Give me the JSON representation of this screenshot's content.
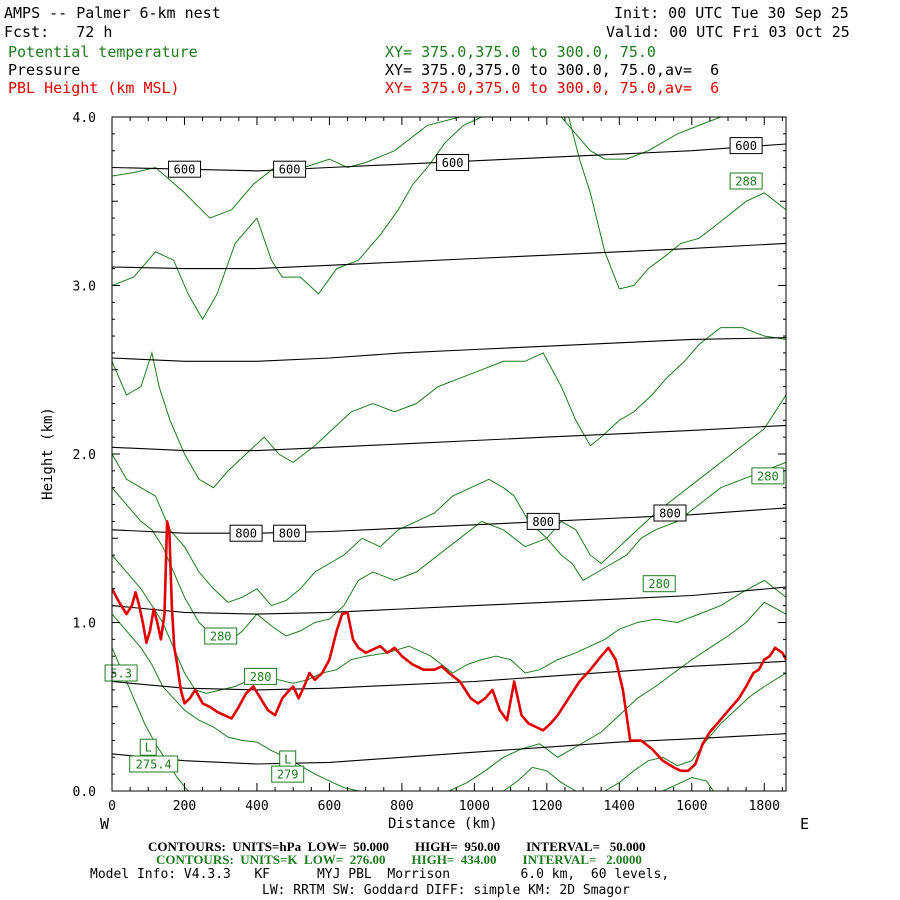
{
  "header": {
    "title": "AMPS -- Palmer 6-km nest",
    "fcst": "Fcst:   72 h",
    "init": "Init: 00 UTC Tue 30 Sep 25",
    "valid": "Valid: 00 UTC Fri 03 Oct 25",
    "field1_name": "Potential temperature",
    "field1_xy": "XY= 375.0,375.0 to 300.0, 75.0",
    "field2_name": "Pressure",
    "field2_xy": "XY= 375.0,375.0 to 300.0, 75.0,av=  6",
    "field3_name": "PBL Height (km MSL)",
    "field3_xy": "XY= 375.0,375.0 to 300.0, 75.0,av=  6"
  },
  "footer": {
    "left_end": "W",
    "right_end": "E",
    "contours_p": "CONTOURS:  UNITS=hPa  LOW=  50.000        HIGH=  950.00        INTERVAL=   50.000",
    "contours_t": "CONTOURS:  UNITS=K  LOW=  276.00        HIGH=  434.00        INTERVAL=   2.0000",
    "model1": "Model Info: V4.3.3   KF      MYJ PBL  Morrison         6.0 km,  60 levels,",
    "model2": "LW: RRTM SW: Goddard DIFF: simple KM: 2D Smagor"
  },
  "colors": {
    "theta": "#1f7a1f",
    "pressure": "#000000",
    "pbl": "#e00000"
  },
  "chart_data": {
    "type": "line",
    "xlabel": "Distance (km)",
    "ylabel": "Height (km)",
    "xlim": [
      0,
      1860
    ],
    "ylim": [
      0,
      4.0
    ],
    "xticks": [
      0,
      200,
      400,
      600,
      800,
      1000,
      1200,
      1400,
      1600,
      1800
    ],
    "yticks": [
      0.0,
      1.0,
      2.0,
      3.0,
      4.0
    ],
    "ytick_labels": [
      "0.0",
      "1.0",
      "2.0",
      "3.0",
      "4.0"
    ],
    "pressure_contours": [
      {
        "x": [
          0,
          200,
          400,
          600,
          800,
          1000,
          1200,
          1400,
          1600,
          1860
        ],
        "y": [
          3.7,
          3.69,
          3.68,
          3.7,
          3.72,
          3.74,
          3.76,
          3.78,
          3.8,
          3.84
        ]
      },
      {
        "x": [
          0,
          200,
          400,
          600,
          800,
          1000,
          1200,
          1400,
          1600,
          1860
        ],
        "y": [
          3.11,
          3.1,
          3.1,
          3.12,
          3.14,
          3.16,
          3.18,
          3.2,
          3.22,
          3.25
        ]
      },
      {
        "x": [
          0,
          200,
          400,
          600,
          800,
          1000,
          1200,
          1400,
          1600,
          1860
        ],
        "y": [
          2.57,
          2.55,
          2.55,
          2.57,
          2.6,
          2.62,
          2.64,
          2.66,
          2.68,
          2.69
        ]
      },
      {
        "x": [
          0,
          200,
          400,
          600,
          800,
          1000,
          1200,
          1400,
          1600,
          1860
        ],
        "y": [
          2.04,
          2.02,
          2.02,
          2.04,
          2.06,
          2.08,
          2.1,
          2.12,
          2.14,
          2.17
        ]
      },
      {
        "x": [
          0,
          200,
          400,
          600,
          800,
          1000,
          1200,
          1400,
          1600,
          1860
        ],
        "y": [
          1.55,
          1.53,
          1.53,
          1.54,
          1.56,
          1.58,
          1.6,
          1.62,
          1.64,
          1.68
        ]
      },
      {
        "x": [
          0,
          200,
          400,
          600,
          800,
          1000,
          1200,
          1400,
          1600,
          1860
        ],
        "y": [
          1.1,
          1.06,
          1.05,
          1.06,
          1.08,
          1.1,
          1.12,
          1.14,
          1.16,
          1.21
        ]
      },
      {
        "x": [
          0,
          200,
          400,
          600,
          800,
          1000,
          1200,
          1400,
          1600,
          1860
        ],
        "y": [
          0.65,
          0.61,
          0.6,
          0.61,
          0.63,
          0.65,
          0.68,
          0.71,
          0.74,
          0.77
        ]
      },
      {
        "x": [
          0,
          200,
          400,
          600,
          800,
          1000,
          1200,
          1400,
          1600,
          1860
        ],
        "y": [
          0.22,
          0.18,
          0.16,
          0.17,
          0.2,
          0.23,
          0.26,
          0.29,
          0.31,
          0.34
        ]
      }
    ],
    "pressure_labels": [
      {
        "text": "600",
        "x": 200,
        "y": 3.69
      },
      {
        "text": "600",
        "x": 490,
        "y": 3.69
      },
      {
        "text": "600",
        "x": 940,
        "y": 3.73
      },
      {
        "text": "600",
        "x": 1750,
        "y": 3.83
      },
      {
        "text": "800",
        "x": 370,
        "y": 1.53
      },
      {
        "text": "800",
        "x": 490,
        "y": 1.53
      },
      {
        "text": "800",
        "x": 1190,
        "y": 1.6
      },
      {
        "text": "800",
        "x": 1540,
        "y": 1.65
      }
    ],
    "theta_contours": [
      {
        "x": [
          0,
          60,
          120,
          200,
          270,
          330,
          390,
          460,
          530,
          600,
          650,
          700,
          780,
          870,
          960,
          1050,
          1120,
          1180,
          1250,
          1300,
          1360,
          1420,
          1500,
          1560,
          1620,
          1680,
          1750,
          1800,
          1860
        ],
        "y": [
          3.65,
          3.67,
          3.7,
          3.55,
          3.4,
          3.45,
          3.6,
          3.72,
          3.7,
          3.75,
          3.7,
          3.73,
          3.8,
          3.95,
          4.0,
          4.0,
          4.0,
          4.0,
          4.0,
          4.0,
          4.0,
          4.0,
          4.0,
          4.0,
          4.0,
          4.0,
          4.0,
          4.0,
          4.0
        ]
      },
      {
        "x": [
          0,
          60,
          120,
          170,
          210,
          250,
          290,
          340,
          400,
          440,
          470,
          520,
          570,
          620,
          680,
          740,
          790,
          830,
          870,
          920,
          970,
          1020,
          1060,
          1100,
          1150
        ],
        "y": [
          3.0,
          3.05,
          3.2,
          3.15,
          2.95,
          2.8,
          2.95,
          3.25,
          3.4,
          3.15,
          3.05,
          3.05,
          2.95,
          3.1,
          3.15,
          3.3,
          3.45,
          3.6,
          3.7,
          3.85,
          3.95,
          4.0,
          4.0,
          4.0,
          4.0
        ]
      },
      {
        "x": [
          1260,
          1290,
          1320,
          1360,
          1400,
          1440,
          1480,
          1530,
          1570,
          1620,
          1680,
          1750,
          1800,
          1860
        ],
        "y": [
          4.0,
          3.75,
          3.55,
          3.2,
          2.98,
          3.0,
          3.1,
          3.18,
          3.25,
          3.28,
          3.38,
          3.5,
          3.55,
          3.45
        ]
      },
      {
        "x": [
          1240,
          1280,
          1320,
          1360,
          1420,
          1480,
          1560,
          1620,
          1680,
          1740,
          1800,
          1860
        ],
        "y": [
          4.0,
          3.9,
          3.8,
          3.75,
          3.75,
          3.8,
          3.9,
          3.95,
          4.0,
          4.0,
          4.0,
          4.0
        ]
      },
      {
        "x": [
          0,
          40,
          80,
          110,
          130,
          160,
          200,
          240,
          280,
          320,
          370,
          420,
          460,
          500,
          560,
          610,
          660,
          720,
          780,
          840,
          900,
          960,
          1020,
          1080,
          1140,
          1190,
          1240,
          1280,
          1320,
          1350,
          1400,
          1440,
          1490,
          1530,
          1580,
          1620,
          1680,
          1740,
          1800,
          1860
        ],
        "y": [
          2.55,
          2.35,
          2.4,
          2.6,
          2.4,
          2.2,
          2.0,
          1.85,
          1.8,
          1.9,
          2.0,
          2.1,
          2.0,
          1.95,
          2.05,
          2.15,
          2.25,
          2.3,
          2.25,
          2.3,
          2.4,
          2.45,
          2.5,
          2.55,
          2.55,
          2.6,
          2.4,
          2.2,
          2.05,
          2.1,
          2.2,
          2.25,
          2.35,
          2.45,
          2.55,
          2.65,
          2.75,
          2.75,
          2.7,
          2.68
        ]
      },
      {
        "x": [
          0,
          40,
          80,
          120,
          160,
          200,
          240,
          280,
          320,
          360,
          400,
          440,
          480,
          520,
          560,
          600,
          640,
          690,
          740,
          790,
          840,
          890,
          940,
          990,
          1040,
          1080,
          1110,
          1150,
          1200,
          1240,
          1280,
          1320,
          1350,
          1400,
          1450,
          1500,
          1560,
          1620,
          1680,
          1740,
          1800,
          1860
        ],
        "y": [
          2.0,
          1.85,
          1.8,
          1.75,
          1.55,
          1.45,
          1.3,
          1.2,
          1.12,
          1.15,
          1.2,
          1.1,
          1.13,
          1.2,
          1.3,
          1.35,
          1.4,
          1.5,
          1.45,
          1.55,
          1.6,
          1.65,
          1.75,
          1.8,
          1.85,
          1.8,
          1.75,
          1.6,
          1.5,
          1.6,
          1.55,
          1.4,
          1.35,
          1.45,
          1.55,
          1.65,
          1.75,
          1.85,
          1.95,
          2.05,
          2.15,
          2.35
        ]
      },
      {
        "x": [
          0,
          40,
          80,
          110,
          140,
          170,
          200,
          240,
          280,
          320,
          360,
          400,
          440,
          480,
          520,
          560,
          600,
          640,
          680,
          720,
          780,
          840,
          900,
          960,
          1020,
          1080,
          1140,
          1200,
          1240,
          1270,
          1300,
          1340,
          1380,
          1420,
          1460,
          1500,
          1560,
          1620,
          1680,
          1740,
          1800,
          1860
        ],
        "y": [
          1.8,
          1.7,
          1.6,
          1.55,
          1.45,
          1.3,
          1.15,
          1.0,
          0.92,
          0.88,
          0.95,
          1.05,
          0.98,
          0.92,
          0.95,
          1.0,
          1.02,
          1.1,
          1.25,
          1.3,
          1.25,
          1.3,
          1.4,
          1.5,
          1.6,
          1.55,
          1.45,
          1.5,
          1.4,
          1.35,
          1.25,
          1.3,
          1.35,
          1.4,
          1.5,
          1.55,
          1.6,
          1.7,
          1.8,
          1.85,
          1.9,
          1.95
        ]
      },
      {
        "x": [
          0,
          40,
          80,
          110,
          140,
          170,
          200,
          230,
          260,
          300,
          340,
          380,
          420,
          460,
          500,
          540,
          580,
          620,
          660,
          700,
          760,
          820,
          880,
          940,
          980,
          1020,
          1060,
          1100,
          1140,
          1180,
          1230,
          1280,
          1320,
          1360,
          1400,
          1450,
          1500,
          1560,
          1620,
          1680,
          1740,
          1800,
          1860
        ],
        "y": [
          1.4,
          1.3,
          1.2,
          1.1,
          1.0,
          0.85,
          0.7,
          0.6,
          0.58,
          0.6,
          0.62,
          0.66,
          0.68,
          0.66,
          0.64,
          0.66,
          0.7,
          0.72,
          0.78,
          0.8,
          0.82,
          0.86,
          0.8,
          0.7,
          0.75,
          0.78,
          0.8,
          0.78,
          0.7,
          0.72,
          0.78,
          0.82,
          0.86,
          0.9,
          0.96,
          1.0,
          1.02,
          1.0,
          1.05,
          1.1,
          1.18,
          1.25,
          1.15
        ]
      },
      {
        "x": [
          0,
          40,
          80,
          110,
          140,
          170,
          200,
          240,
          280,
          320,
          360,
          400,
          440,
          480,
          520,
          560,
          600,
          640,
          680
        ],
        "y": [
          1.05,
          0.95,
          0.85,
          0.75,
          0.62,
          0.55,
          0.48,
          0.42,
          0.38,
          0.32,
          0.3,
          0.29,
          0.24,
          0.2,
          0.15,
          0.1,
          0.06,
          0.02,
          0.0
        ]
      },
      {
        "x": [
          0,
          30,
          60,
          90,
          120,
          150,
          180,
          210
        ],
        "y": [
          0.85,
          0.7,
          0.55,
          0.4,
          0.28,
          0.18,
          0.08,
          0.0
        ]
      },
      {
        "x": [
          930,
          980,
          1030,
          1080,
          1130,
          1180,
          1230,
          1270,
          1310,
          1350,
          1400,
          1450,
          1500,
          1550,
          1600,
          1650,
          1700,
          1750,
          1800,
          1860
        ],
        "y": [
          0.0,
          0.05,
          0.12,
          0.2,
          0.25,
          0.28,
          0.2,
          0.25,
          0.3,
          0.35,
          0.45,
          0.55,
          0.62,
          0.7,
          0.78,
          0.85,
          0.92,
          1.0,
          1.12,
          1.05
        ]
      },
      {
        "x": [
          1080,
          1120,
          1160,
          1200,
          1240,
          1280
        ],
        "y": [
          0.0,
          0.06,
          0.14,
          0.12,
          0.05,
          0.0
        ]
      },
      {
        "x": [
          1360,
          1400,
          1440,
          1480,
          1520,
          1560,
          1600,
          1640,
          1680,
          1720,
          1760,
          1800,
          1860
        ],
        "y": [
          0.0,
          0.05,
          0.12,
          0.18,
          0.2,
          0.15,
          0.18,
          0.3,
          0.4,
          0.48,
          0.56,
          0.62,
          0.7
        ]
      },
      {
        "x": [
          1520,
          1560,
          1600,
          1640,
          1660
        ],
        "y": [
          0.0,
          0.04,
          0.08,
          0.06,
          0.0
        ]
      }
    ],
    "theta_labels": [
      {
        "text": "288",
        "x": 1750,
        "y": 3.62
      },
      {
        "text": "280",
        "x": 1810,
        "y": 1.87
      },
      {
        "text": "280",
        "x": 1510,
        "y": 1.23
      },
      {
        "text": "280",
        "x": 300,
        "y": 0.92
      },
      {
        "text": "280",
        "x": 410,
        "y": 0.68
      },
      {
        "text": "5.3",
        "x": 25,
        "y": 0.7
      },
      {
        "text": "L",
        "x": 100,
        "y": 0.26
      },
      {
        "text": "275.4",
        "x": 115,
        "y": 0.16
      },
      {
        "text": "L",
        "x": 485,
        "y": 0.19
      },
      {
        "text": "279",
        "x": 485,
        "y": 0.1
      }
    ],
    "series": [
      {
        "name": "PBL Height (km MSL)",
        "x": [
          0,
          20,
          40,
          55,
          65,
          75,
          85,
          95,
          105,
          115,
          125,
          135,
          145,
          152,
          158,
          165,
          172,
          180,
          190,
          200,
          215,
          230,
          250,
          270,
          290,
          310,
          330,
          350,
          370,
          390,
          410,
          430,
          450,
          470,
          490,
          500,
          515,
          530,
          545,
          560,
          580,
          600,
          620,
          635,
          650,
          665,
          680,
          700,
          720,
          740,
          760,
          780,
          800,
          830,
          860,
          890,
          910,
          930,
          960,
          990,
          1010,
          1030,
          1050,
          1070,
          1090,
          1110,
          1130,
          1150,
          1170,
          1190,
          1210,
          1230,
          1260,
          1290,
          1320,
          1350,
          1370,
          1390,
          1410,
          1430,
          1460,
          1490,
          1520,
          1550,
          1570,
          1590,
          1610,
          1630,
          1650,
          1670,
          1690,
          1710,
          1730,
          1750,
          1770,
          1785,
          1800,
          1815,
          1830,
          1850,
          1860
        ],
        "y": [
          1.2,
          1.12,
          1.05,
          1.1,
          1.18,
          1.1,
          1.0,
          0.88,
          0.95,
          1.08,
          1.0,
          0.9,
          1.05,
          1.6,
          1.55,
          1.1,
          0.85,
          0.75,
          0.6,
          0.52,
          0.55,
          0.6,
          0.52,
          0.5,
          0.47,
          0.45,
          0.43,
          0.5,
          0.58,
          0.62,
          0.55,
          0.48,
          0.45,
          0.55,
          0.6,
          0.62,
          0.55,
          0.62,
          0.7,
          0.66,
          0.7,
          0.78,
          0.95,
          1.05,
          1.06,
          0.9,
          0.85,
          0.82,
          0.84,
          0.86,
          0.82,
          0.85,
          0.8,
          0.75,
          0.72,
          0.72,
          0.74,
          0.7,
          0.65,
          0.55,
          0.52,
          0.55,
          0.6,
          0.48,
          0.42,
          0.65,
          0.45,
          0.4,
          0.38,
          0.36,
          0.4,
          0.45,
          0.55,
          0.65,
          0.72,
          0.8,
          0.85,
          0.78,
          0.6,
          0.3,
          0.3,
          0.25,
          0.18,
          0.14,
          0.12,
          0.12,
          0.16,
          0.28,
          0.35,
          0.4,
          0.45,
          0.5,
          0.55,
          0.62,
          0.7,
          0.72,
          0.78,
          0.8,
          0.85,
          0.82,
          0.78
        ]
      }
    ]
  }
}
